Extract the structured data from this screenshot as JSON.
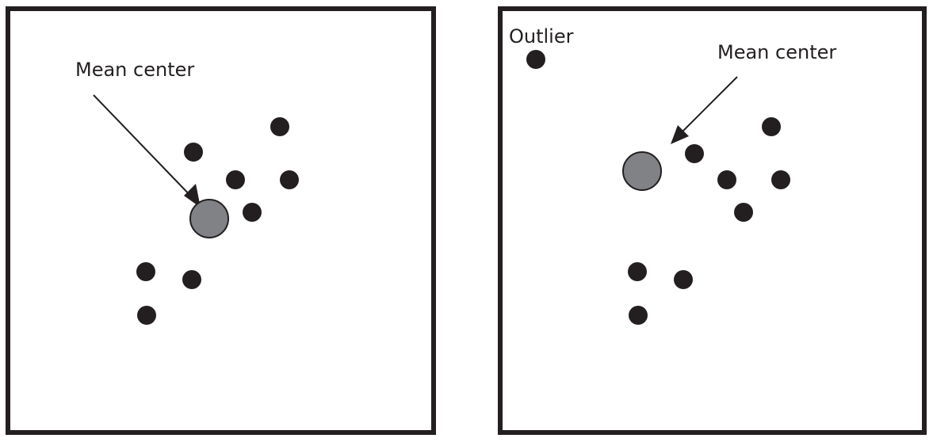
{
  "colors": {
    "frame": "#231f20",
    "point": "#231f20",
    "mean_fill": "#808285",
    "background": "#ffffff"
  },
  "left_panel": {
    "mean_label": "Mean center"
  },
  "right_panel": {
    "mean_label": "Mean center",
    "outlier_label": "Outlier"
  }
}
